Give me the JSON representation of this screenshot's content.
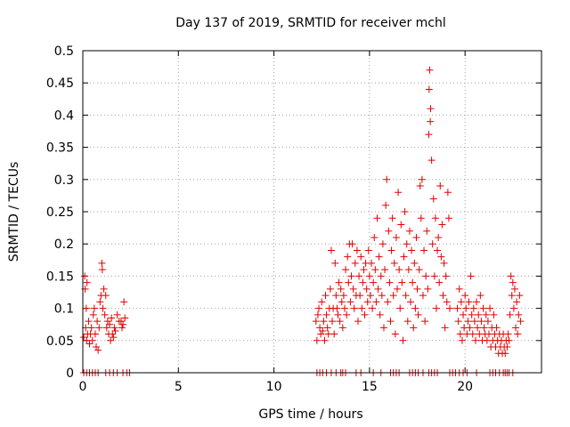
{
  "chart_data": {
    "type": "scatter",
    "title": "Day 137 of 2019, SRMTID for receiver mchl",
    "xlabel": "GPS time / hours",
    "ylabel": "SRMTID / TECUs",
    "xlim": [
      0,
      24
    ],
    "ylim": [
      0,
      0.5
    ],
    "xticks": [
      0,
      5,
      10,
      15,
      20
    ],
    "yticks": [
      0,
      0.05,
      0.1,
      0.15,
      0.2,
      0.25,
      0.3,
      0.35,
      0.4,
      0.45,
      0.5
    ],
    "xtick_labels": [
      "0",
      "5",
      "10",
      "15",
      "20"
    ],
    "ytick_labels": [
      "0",
      "0.05",
      "0.1",
      "0.15",
      "0.2",
      "0.25",
      "0.3",
      "0.35",
      "0.4",
      "0.45",
      "0.5"
    ],
    "grid": true,
    "marker": "+",
    "color": "#e00000",
    "series": [
      {
        "name": "SRMTID",
        "points": [
          [
            0.05,
            0.055
          ],
          [
            0.1,
            0.15
          ],
          [
            0.12,
            0.13
          ],
          [
            0.15,
            0.07
          ],
          [
            0.18,
            0.1
          ],
          [
            0.2,
            0.05
          ],
          [
            0.22,
            0.14
          ],
          [
            0.25,
            0.06
          ],
          [
            0.3,
            0.08
          ],
          [
            0.35,
            0.045
          ],
          [
            0.4,
            0.06
          ],
          [
            0.45,
            0.07
          ],
          [
            0.5,
            0.05
          ],
          [
            0.55,
            0.09
          ],
          [
            0.6,
            0.1
          ],
          [
            0.65,
            0.06
          ],
          [
            0.7,
            0.04
          ],
          [
            0.75,
            0.08
          ],
          [
            0.8,
            0.035
          ],
          [
            0.85,
            0.07
          ],
          [
            0.9,
            0.11
          ],
          [
            0.95,
            0.12
          ],
          [
            1.0,
            0.17
          ],
          [
            1.02,
            0.16
          ],
          [
            1.05,
            0.1
          ],
          [
            1.1,
            0.13
          ],
          [
            1.15,
            0.09
          ],
          [
            1.2,
            0.12
          ],
          [
            1.25,
            0.07
          ],
          [
            1.3,
            0.08
          ],
          [
            1.35,
            0.06
          ],
          [
            1.4,
            0.075
          ],
          [
            1.45,
            0.05
          ],
          [
            1.5,
            0.085
          ],
          [
            1.55,
            0.06
          ],
          [
            1.6,
            0.055
          ],
          [
            1.65,
            0.07
          ],
          [
            1.7,
            0.065
          ],
          [
            1.8,
            0.09
          ],
          [
            1.9,
            0.08
          ],
          [
            2.0,
            0.08
          ],
          [
            2.05,
            0.07
          ],
          [
            2.1,
            0.075
          ],
          [
            2.15,
            0.11
          ],
          [
            2.2,
            0.085
          ],
          [
            12.2,
            0.08
          ],
          [
            12.25,
            0.05
          ],
          [
            12.3,
            0.09
          ],
          [
            12.35,
            0.1
          ],
          [
            12.4,
            0.07
          ],
          [
            12.45,
            0.06
          ],
          [
            12.5,
            0.11
          ],
          [
            12.55,
            0.065
          ],
          [
            12.6,
            0.08
          ],
          [
            12.65,
            0.05
          ],
          [
            12.7,
            0.12
          ],
          [
            12.75,
            0.09
          ],
          [
            12.8,
            0.07
          ],
          [
            12.85,
            0.06
          ],
          [
            12.9,
            0.1
          ],
          [
            12.95,
            0.13
          ],
          [
            13.0,
            0.19
          ],
          [
            13.05,
            0.08
          ],
          [
            13.1,
            0.1
          ],
          [
            13.15,
            0.06
          ],
          [
            13.2,
            0.17
          ],
          [
            13.25,
            0.12
          ],
          [
            13.3,
            0.1
          ],
          [
            13.35,
            0.09
          ],
          [
            13.4,
            0.14
          ],
          [
            13.45,
            0.08
          ],
          [
            13.5,
            0.13
          ],
          [
            13.55,
            0.11
          ],
          [
            13.6,
            0.07
          ],
          [
            13.65,
            0.12
          ],
          [
            13.7,
            0.1
          ],
          [
            13.75,
            0.16
          ],
          [
            13.8,
            0.09
          ],
          [
            13.85,
            0.18
          ],
          [
            13.9,
            0.14
          ],
          [
            13.95,
            0.2
          ],
          [
            14.0,
            0.11
          ],
          [
            14.05,
            0.15
          ],
          [
            14.1,
            0.2
          ],
          [
            14.15,
            0.13
          ],
          [
            14.2,
            0.1
          ],
          [
            14.25,
            0.17
          ],
          [
            14.3,
            0.12
          ],
          [
            14.35,
            0.19
          ],
          [
            14.4,
            0.08
          ],
          [
            14.45,
            0.15
          ],
          [
            14.5,
            0.12
          ],
          [
            14.55,
            0.18
          ],
          [
            14.6,
            0.1
          ],
          [
            14.65,
            0.14
          ],
          [
            14.7,
            0.16
          ],
          [
            14.75,
            0.09
          ],
          [
            14.8,
            0.17
          ],
          [
            14.85,
            0.13
          ],
          [
            14.9,
            0.11
          ],
          [
            14.95,
            0.19
          ],
          [
            15.0,
            0.15
          ],
          [
            15.05,
            0.12
          ],
          [
            15.1,
            0.17
          ],
          [
            15.15,
            0.1
          ],
          [
            15.2,
            0.14
          ],
          [
            15.25,
            0.21
          ],
          [
            15.3,
            0.16
          ],
          [
            15.35,
            0.11
          ],
          [
            15.4,
            0.24
          ],
          [
            15.45,
            0.13
          ],
          [
            15.5,
            0.18
          ],
          [
            15.55,
            0.09
          ],
          [
            15.6,
            0.15
          ],
          [
            15.65,
            0.12
          ],
          [
            15.7,
            0.2
          ],
          [
            15.75,
            0.07
          ],
          [
            15.8,
            0.16
          ],
          [
            15.85,
            0.26
          ],
          [
            15.9,
            0.3
          ],
          [
            15.95,
            0.11
          ],
          [
            16.0,
            0.22
          ],
          [
            16.05,
            0.14
          ],
          [
            16.1,
            0.08
          ],
          [
            16.15,
            0.19
          ],
          [
            16.2,
            0.24
          ],
          [
            16.25,
            0.12
          ],
          [
            16.3,
            0.17
          ],
          [
            16.35,
            0.06
          ],
          [
            16.4,
            0.21
          ],
          [
            16.45,
            0.13
          ],
          [
            16.5,
            0.28
          ],
          [
            16.55,
            0.16
          ],
          [
            16.6,
            0.1
          ],
          [
            16.65,
            0.23
          ],
          [
            16.7,
            0.14
          ],
          [
            16.75,
            0.05
          ],
          [
            16.8,
            0.18
          ],
          [
            16.85,
            0.25
          ],
          [
            16.9,
            0.12
          ],
          [
            16.95,
            0.2
          ],
          [
            17.0,
            0.08
          ],
          [
            17.05,
            0.16
          ],
          [
            17.1,
            0.22
          ],
          [
            17.15,
            0.11
          ],
          [
            17.2,
            0.19
          ],
          [
            17.25,
            0.14
          ],
          [
            17.3,
            0.07
          ],
          [
            17.35,
            0.17
          ],
          [
            17.4,
            0.1
          ],
          [
            17.45,
            0.21
          ],
          [
            17.5,
            0.13
          ],
          [
            17.55,
            0.09
          ],
          [
            17.6,
            0.16
          ],
          [
            17.65,
            0.29
          ],
          [
            17.7,
            0.24
          ],
          [
            17.75,
            0.3
          ],
          [
            17.8,
            0.12
          ],
          [
            17.85,
            0.19
          ],
          [
            17.9,
            0.08
          ],
          [
            17.95,
            0.15
          ],
          [
            18.0,
            0.22
          ],
          [
            18.05,
            0.13
          ],
          [
            18.1,
            0.37
          ],
          [
            18.12,
            0.44
          ],
          [
            18.15,
            0.47
          ],
          [
            18.18,
            0.39
          ],
          [
            18.2,
            0.41
          ],
          [
            18.25,
            0.33
          ],
          [
            18.3,
            0.2
          ],
          [
            18.35,
            0.27
          ],
          [
            18.4,
            0.15
          ],
          [
            18.45,
            0.24
          ],
          [
            18.5,
            0.1
          ],
          [
            18.55,
            0.19
          ],
          [
            18.6,
            0.21
          ],
          [
            18.65,
            0.14
          ],
          [
            18.7,
            0.29
          ],
          [
            18.75,
            0.18
          ],
          [
            18.8,
            0.23
          ],
          [
            18.85,
            0.12
          ],
          [
            18.9,
            0.17
          ],
          [
            18.95,
            0.07
          ],
          [
            19.0,
            0.15
          ],
          [
            19.05,
            0.11
          ],
          [
            19.1,
            0.28
          ],
          [
            19.15,
            0.24
          ],
          [
            19.2,
            0.1
          ],
          [
            19.6,
            0.1
          ],
          [
            19.65,
            0.08
          ],
          [
            19.7,
            0.13
          ],
          [
            19.75,
            0.06
          ],
          [
            19.8,
            0.11
          ],
          [
            19.85,
            0.05
          ],
          [
            19.9,
            0.09
          ],
          [
            19.95,
            0.07
          ],
          [
            20.0,
            0.12
          ],
          [
            20.05,
            0.1
          ],
          [
            20.1,
            0.06
          ],
          [
            20.15,
            0.08
          ],
          [
            20.2,
            0.11
          ],
          [
            20.25,
            0.07
          ],
          [
            20.3,
            0.15
          ],
          [
            20.35,
            0.09
          ],
          [
            20.4,
            0.06
          ],
          [
            20.45,
            0.1
          ],
          [
            20.5,
            0.08
          ],
          [
            20.55,
            0.05
          ],
          [
            20.6,
            0.11
          ],
          [
            20.65,
            0.07
          ],
          [
            20.7,
            0.09
          ],
          [
            20.75,
            0.06
          ],
          [
            20.8,
            0.12
          ],
          [
            20.85,
            0.08
          ],
          [
            20.9,
            0.05
          ],
          [
            20.95,
            0.1
          ],
          [
            21.0,
            0.07
          ],
          [
            21.05,
            0.06
          ],
          [
            21.1,
            0.09
          ],
          [
            21.15,
            0.05
          ],
          [
            21.2,
            0.08
          ],
          [
            21.25,
            0.06
          ],
          [
            21.3,
            0.1
          ],
          [
            21.35,
            0.04
          ],
          [
            21.4,
            0.07
          ],
          [
            21.45,
            0.05
          ],
          [
            21.5,
            0.09
          ],
          [
            21.55,
            0.06
          ],
          [
            21.6,
            0.04
          ],
          [
            21.65,
            0.07
          ],
          [
            21.7,
            0.05
          ],
          [
            21.75,
            0.03
          ],
          [
            21.8,
            0.06
          ],
          [
            21.85,
            0.04
          ],
          [
            21.9,
            0.05
          ],
          [
            21.95,
            0.03
          ],
          [
            22.0,
            0.06
          ],
          [
            22.05,
            0.04
          ],
          [
            22.1,
            0.03
          ],
          [
            22.15,
            0.05
          ],
          [
            22.2,
            0.04
          ],
          [
            22.25,
            0.06
          ],
          [
            22.3,
            0.05
          ],
          [
            22.35,
            0.09
          ],
          [
            22.4,
            0.15
          ],
          [
            22.45,
            0.12
          ],
          [
            22.5,
            0.14
          ],
          [
            22.55,
            0.1
          ],
          [
            22.6,
            0.13
          ],
          [
            22.65,
            0.07
          ],
          [
            22.7,
            0.11
          ],
          [
            22.75,
            0.06
          ],
          [
            22.8,
            0.09
          ],
          [
            22.85,
            0.12
          ],
          [
            22.9,
            0.08
          ],
          [
            0.05,
            0
          ],
          [
            0.2,
            0
          ],
          [
            0.35,
            0
          ],
          [
            0.5,
            0
          ],
          [
            0.65,
            0
          ],
          [
            0.8,
            0
          ],
          [
            1.2,
            0
          ],
          [
            1.4,
            0
          ],
          [
            1.6,
            0
          ],
          [
            1.8,
            0
          ],
          [
            2.1,
            0
          ],
          [
            2.3,
            0
          ],
          [
            2.45,
            0
          ],
          [
            12.25,
            0
          ],
          [
            12.4,
            0
          ],
          [
            12.55,
            0
          ],
          [
            12.75,
            0
          ],
          [
            13.0,
            0
          ],
          [
            13.25,
            0
          ],
          [
            13.5,
            0
          ],
          [
            13.6,
            0
          ],
          [
            13.75,
            0
          ],
          [
            14.3,
            0
          ],
          [
            14.55,
            0
          ],
          [
            15.2,
            0
          ],
          [
            15.6,
            0
          ],
          [
            16.1,
            0
          ],
          [
            16.25,
            0
          ],
          [
            16.4,
            0
          ],
          [
            16.55,
            0
          ],
          [
            17.1,
            0
          ],
          [
            17.25,
            0
          ],
          [
            17.4,
            0
          ],
          [
            17.55,
            0
          ],
          [
            17.8,
            0
          ],
          [
            18.1,
            0
          ],
          [
            18.25,
            0
          ],
          [
            18.4,
            0
          ],
          [
            18.55,
            0
          ],
          [
            19.2,
            0
          ],
          [
            19.35,
            0
          ],
          [
            19.5,
            0
          ],
          [
            19.7,
            0
          ],
          [
            19.9,
            0
          ],
          [
            20.1,
            0
          ],
          [
            20.6,
            0
          ],
          [
            21.3,
            0
          ],
          [
            21.45,
            0
          ],
          [
            21.6,
            0
          ],
          [
            21.8,
            0
          ],
          [
            22.0,
            0
          ],
          [
            22.1,
            0
          ],
          [
            22.2,
            0
          ],
          [
            22.3,
            0
          ],
          [
            22.5,
            0
          ]
        ]
      }
    ]
  }
}
